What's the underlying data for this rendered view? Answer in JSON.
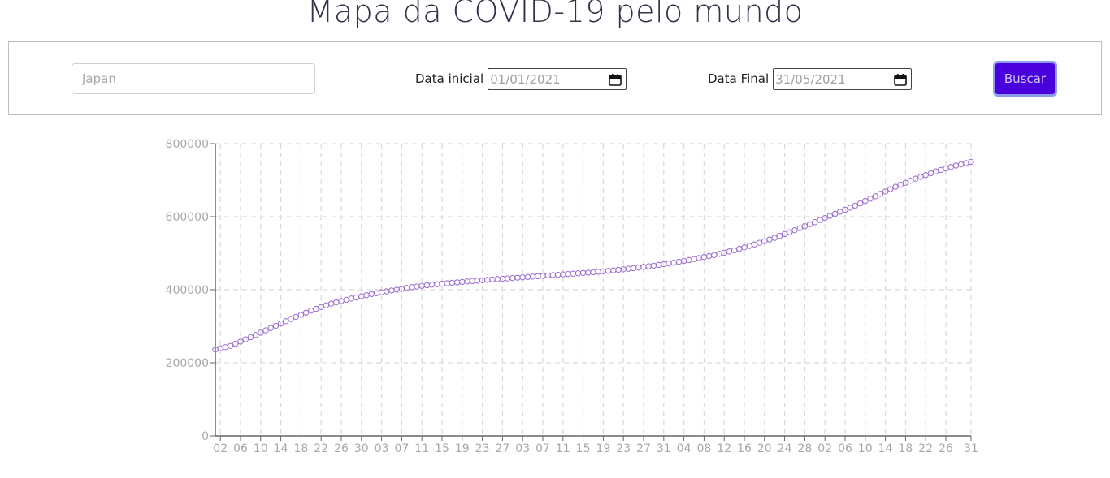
{
  "header": {
    "title": "Mapa da COVID-19 pelo mundo"
  },
  "search": {
    "country_placeholder": "Japan",
    "start_label": "Data inicial",
    "start_value": "01/01/2021",
    "end_label": "Data Final",
    "end_value": "31/05/2021",
    "button_label": "Buscar"
  },
  "colors": {
    "accent": "#4a00dd",
    "button_border": "#8d9cf0",
    "series": "#9b6bd0",
    "grid": "#d9d9d9",
    "axis": "#666666",
    "tick_text": "#a8a8a8"
  },
  "chart_data": {
    "type": "scatter",
    "title": "",
    "xlabel": "",
    "ylabel": "",
    "grid": true,
    "legend": "none",
    "x_range": [
      "2021-01-01",
      "2021-05-31"
    ],
    "ylim": [
      0,
      800000
    ],
    "y_ticks": [
      0,
      200000,
      400000,
      600000,
      800000
    ],
    "x_tick_labels": [
      "02",
      "06",
      "10",
      "14",
      "18",
      "22",
      "26",
      "30",
      "03",
      "07",
      "11",
      "15",
      "19",
      "23",
      "27",
      "03",
      "07",
      "11",
      "15",
      "19",
      "23",
      "27",
      "31",
      "04",
      "08",
      "12",
      "16",
      "20",
      "24",
      "28",
      "02",
      "06",
      "10",
      "14",
      "18",
      "22",
      "26",
      "31"
    ],
    "series": [
      {
        "name": "",
        "anchors": [
          [
            "2021-01-01",
            236000
          ],
          [
            "2021-01-04",
            246000
          ],
          [
            "2021-01-08",
            270000
          ],
          [
            "2021-01-12",
            295000
          ],
          [
            "2021-01-16",
            320000
          ],
          [
            "2021-01-20",
            343000
          ],
          [
            "2021-01-24",
            362000
          ],
          [
            "2021-01-28",
            376000
          ],
          [
            "2021-02-01",
            388000
          ],
          [
            "2021-02-05",
            398000
          ],
          [
            "2021-02-09",
            407000
          ],
          [
            "2021-02-13",
            414000
          ],
          [
            "2021-02-17",
            419000
          ],
          [
            "2021-02-21",
            424000
          ],
          [
            "2021-02-25",
            428000
          ],
          [
            "2021-03-01",
            432000
          ],
          [
            "2021-03-05",
            436000
          ],
          [
            "2021-03-09",
            440000
          ],
          [
            "2021-03-13",
            444000
          ],
          [
            "2021-03-17",
            448000
          ],
          [
            "2021-03-21",
            453000
          ],
          [
            "2021-03-25",
            459000
          ],
          [
            "2021-03-29",
            466000
          ],
          [
            "2021-04-02",
            474000
          ],
          [
            "2021-04-06",
            484000
          ],
          [
            "2021-04-10",
            495000
          ],
          [
            "2021-04-14",
            508000
          ],
          [
            "2021-04-18",
            524000
          ],
          [
            "2021-04-22",
            542000
          ],
          [
            "2021-04-26",
            563000
          ],
          [
            "2021-04-30",
            585000
          ],
          [
            "2021-05-04",
            608000
          ],
          [
            "2021-05-08",
            630000
          ],
          [
            "2021-05-12",
            656000
          ],
          [
            "2021-05-16",
            682000
          ],
          [
            "2021-05-20",
            704000
          ],
          [
            "2021-05-24",
            724000
          ],
          [
            "2021-05-28",
            740000
          ],
          [
            "2021-05-31",
            750000
          ]
        ]
      }
    ]
  }
}
